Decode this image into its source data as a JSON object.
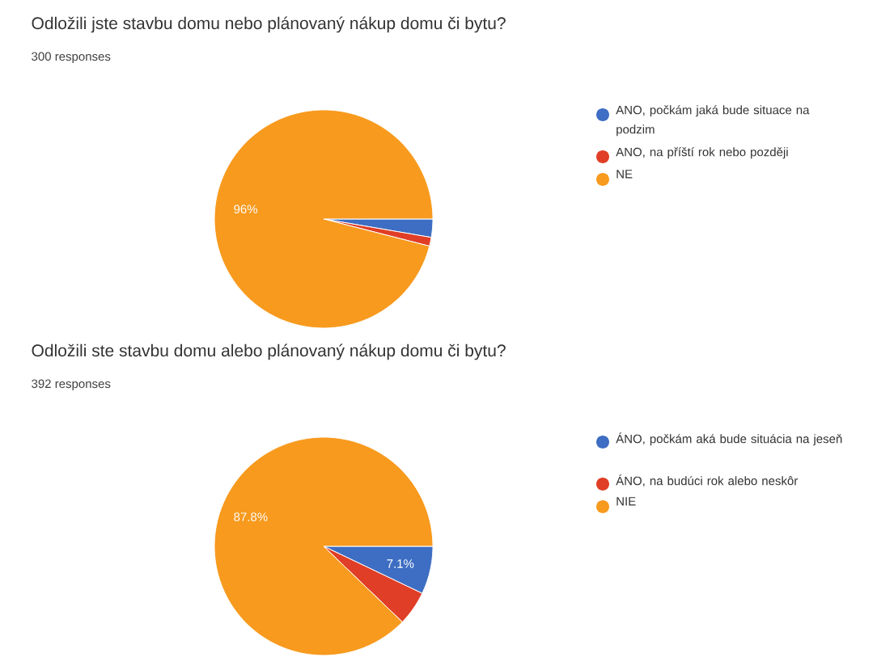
{
  "chart_data": [
    {
      "type": "pie",
      "title": "Odložili jste stavbu domu nebo plánovaný nákup domu či bytu?",
      "subtitle": "300 responses",
      "categories": [
        "ANO, počkám jaká bude situace na podzim",
        "ANO, na příští rok nebo později",
        "NE"
      ],
      "values": [
        2.7,
        1.3,
        96
      ],
      "colors": [
        "#3e6ec3",
        "#e03e26",
        "#f79a1e"
      ],
      "value_labels": [
        null,
        null,
        "96%"
      ],
      "legend": "right"
    },
    {
      "type": "pie",
      "title": "Odložili ste stavbu domu alebo plánovaný nákup domu či bytu?",
      "subtitle": "392 responses",
      "categories": [
        "ÁNO, počkám aká bude situácia na jeseň",
        "ÁNO, na budúci rok alebo neskôr",
        "NIE"
      ],
      "values": [
        7.1,
        5.1,
        87.8
      ],
      "colors": [
        "#3e6ec3",
        "#e03e26",
        "#f79a1e"
      ],
      "value_labels": [
        "7.1%",
        null,
        "87.8%"
      ],
      "legend": "right"
    }
  ]
}
